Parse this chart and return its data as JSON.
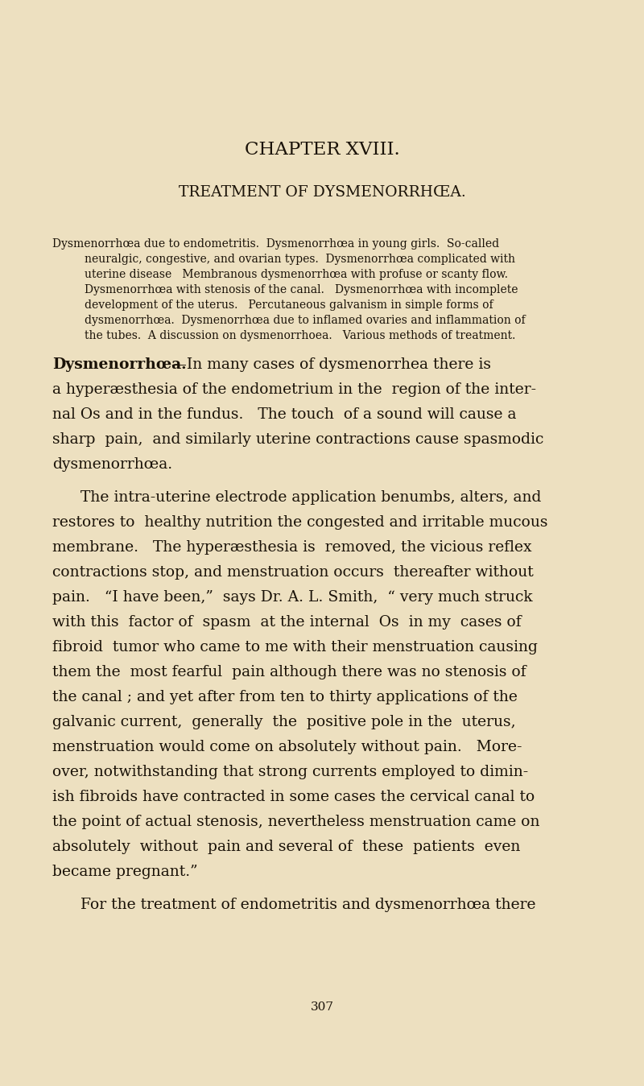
{
  "bg_color": "#ede0c0",
  "text_color": "#1a1208",
  "page_width": 8.0,
  "page_height": 13.49,
  "dpi": 100,
  "chapter_title": "CHAPTER XVIII.",
  "subtitle": "TREATMENT OF DYSMENORRHŒA.",
  "toc_lines": [
    "Dysmenorrhœa due to endometritis.  Dysmenorrhœa in young girls.  So-called",
    "neuralgic, congestive, and ovarian types.  Dysmenorrhœa complicated with",
    "uterine disease   Membranous dysmenorrhœa with profuse or scanty flow.",
    "Dysmenorrhœa with stenosis of the canal.   Dysmenorrhœa with incomplete",
    "development of the uterus.   Percutaneous galvanism in simple forms of",
    "dysmenorrhœa.  Dysmenorrhœa due to inflamed ovaries and inflammation of",
    "the tubes.  A discussion on dysmenorrhoea.   Various methods of treatment."
  ],
  "p1_lines": [
    "a hyperæsthesia of the endometrium in the  region of the inter-",
    "nal Os and in the fundus.   The touch  of a sound will cause a",
    "sharp  pain,  and similarly uterine contractions cause spasmodic",
    "dysmenorrhœa."
  ],
  "p2_lines": [
    "The intra-uterine electrode application benumbs, alters, and",
    "restores to  healthy nutrition the congested and irritable mucous",
    "membrane.   The hyperæsthesia is  removed, the vicious reflex",
    "contractions stop, and menstruation occurs  thereafter without",
    "pain.   “I have been,”  says Dr. A. L. Smith,  “ very much struck",
    "with this  factor of  spasm  at the internal  Os  in my  cases of",
    "fibroid  tumor who came to me with their menstruation causing",
    "them the  most fearful  pain although there was no stenosis of",
    "the canal ; and yet after from ten to thirty applications of the",
    "galvanic current,  generally  the  positive pole in the  uterus,",
    "menstruation would come on absolutely without pain.   More-",
    "over, notwithstanding that strong currents employed to dimin-",
    "ish fibroids have contracted in some cases the cervical canal to",
    "the point of actual stenosis, nevertheless menstruation came on",
    "absolutely  without  pain and several of  these  patients  even",
    "became pregnant.”"
  ],
  "p3_line": "For the treatment of endometritis and dysmenorrhœa there",
  "page_number": "307",
  "bold_word": "Dysmenorrhœa.",
  "bold_dash": "—In many cases of dysmenorrhea there is"
}
